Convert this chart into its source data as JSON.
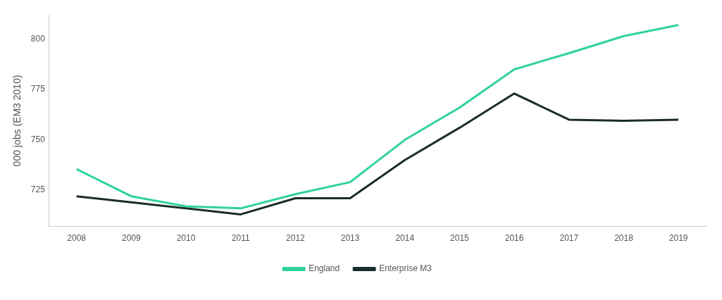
{
  "chart_data": {
    "type": "line",
    "ylabel": "000 jobs (EM3 2010)",
    "categories": [
      "2008",
      "2009",
      "2010",
      "2011",
      "2012",
      "2013",
      "2014",
      "2015",
      "2016",
      "2017",
      "2018",
      "2019"
    ],
    "series": [
      {
        "name": "England",
        "color": "#2fd39a",
        "values": [
          735.5,
          722,
          717,
          716,
          723,
          729,
          750,
          766,
          785,
          793,
          801.5,
          807
        ]
      },
      {
        "name": "Enterprise M3",
        "color": "#1b2b2b",
        "values": [
          722,
          719,
          716,
          713,
          721,
          721,
          740,
          756,
          773,
          760,
          759.5,
          760
        ]
      }
    ],
    "ylim": [
      707,
      812
    ],
    "yticks": [
      725,
      750,
      775,
      800
    ],
    "grid": false,
    "legend": "bottom",
    "marker": "none",
    "line_style": "solid"
  }
}
